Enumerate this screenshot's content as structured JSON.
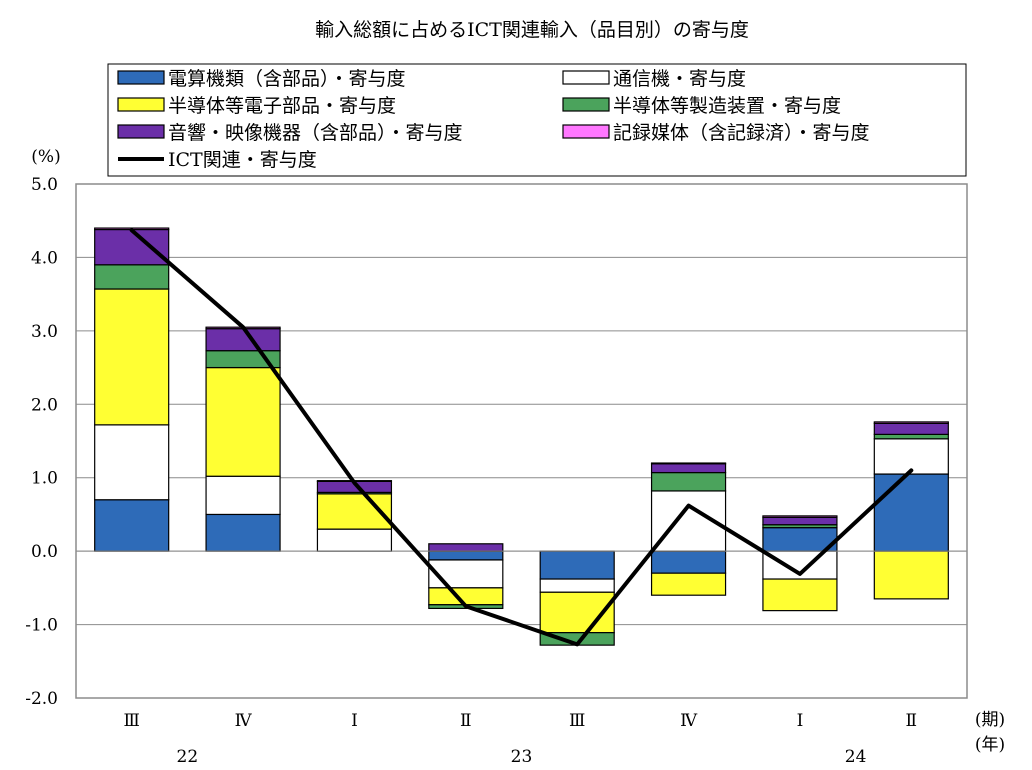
{
  "chart_data": {
    "type": "bar",
    "title": "輸入総額に占めるICT関連輸入（品目別）の寄与度",
    "ylabel": "(%)",
    "x_unit_period": "(期)",
    "x_unit_year": "(年)",
    "ylim": [
      -2.0,
      5.0
    ],
    "yticks": [
      "5.0",
      "4.0",
      "3.0",
      "2.0",
      "1.0",
      "0.0",
      "-1.0",
      "-2.0"
    ],
    "ytick_values": [
      5,
      4,
      3,
      2,
      1,
      0,
      -1,
      -2
    ],
    "grid": true,
    "legend_position": "top",
    "categories": [
      "Ⅲ",
      "Ⅳ",
      "Ⅰ",
      "Ⅱ",
      "Ⅲ",
      "Ⅳ",
      "Ⅰ",
      "Ⅱ"
    ],
    "years": [
      {
        "label": "22",
        "from": 0,
        "to": 1
      },
      {
        "label": "23",
        "from": 2,
        "to": 5
      },
      {
        "label": "24",
        "from": 6,
        "to": 7
      }
    ],
    "series": [
      {
        "name": "電算機類（含部品）・寄与度",
        "color": "#2e6bb8",
        "values": [
          0.7,
          0.5,
          0.0,
          -0.12,
          -0.38,
          -0.3,
          0.32,
          1.05
        ]
      },
      {
        "name": "通信機・寄与度",
        "color": "#ffffff",
        "values": [
          1.02,
          0.52,
          0.3,
          -0.38,
          -0.18,
          0.82,
          -0.38,
          0.48
        ]
      },
      {
        "name": "半導体等電子部品・寄与度",
        "color": "#ffff33",
        "values": [
          1.85,
          1.48,
          0.48,
          -0.23,
          -0.55,
          -0.3,
          -0.43,
          -0.65
        ]
      },
      {
        "name": "半導体等製造装置・寄与度",
        "color": "#4ba35c",
        "values": [
          0.33,
          0.23,
          0.02,
          -0.05,
          -0.17,
          0.25,
          0.04,
          0.06
        ]
      },
      {
        "name": "音響・映像機器（含部品）・寄与度",
        "color": "#6b2fa8",
        "values": [
          0.48,
          0.3,
          0.15,
          0.1,
          0.0,
          0.12,
          0.1,
          0.15
        ]
      },
      {
        "name": "記録媒体（含記録済）・寄与度",
        "color": "#ff77ff",
        "values": [
          0.02,
          0.02,
          0.01,
          0.0,
          0.0,
          0.01,
          0.02,
          0.02
        ]
      }
    ],
    "line": {
      "name": "ICT関連・寄与度",
      "color": "#000000",
      "values": [
        4.37,
        3.05,
        0.93,
        -0.75,
        -1.27,
        0.62,
        -0.31,
        1.1
      ]
    }
  }
}
